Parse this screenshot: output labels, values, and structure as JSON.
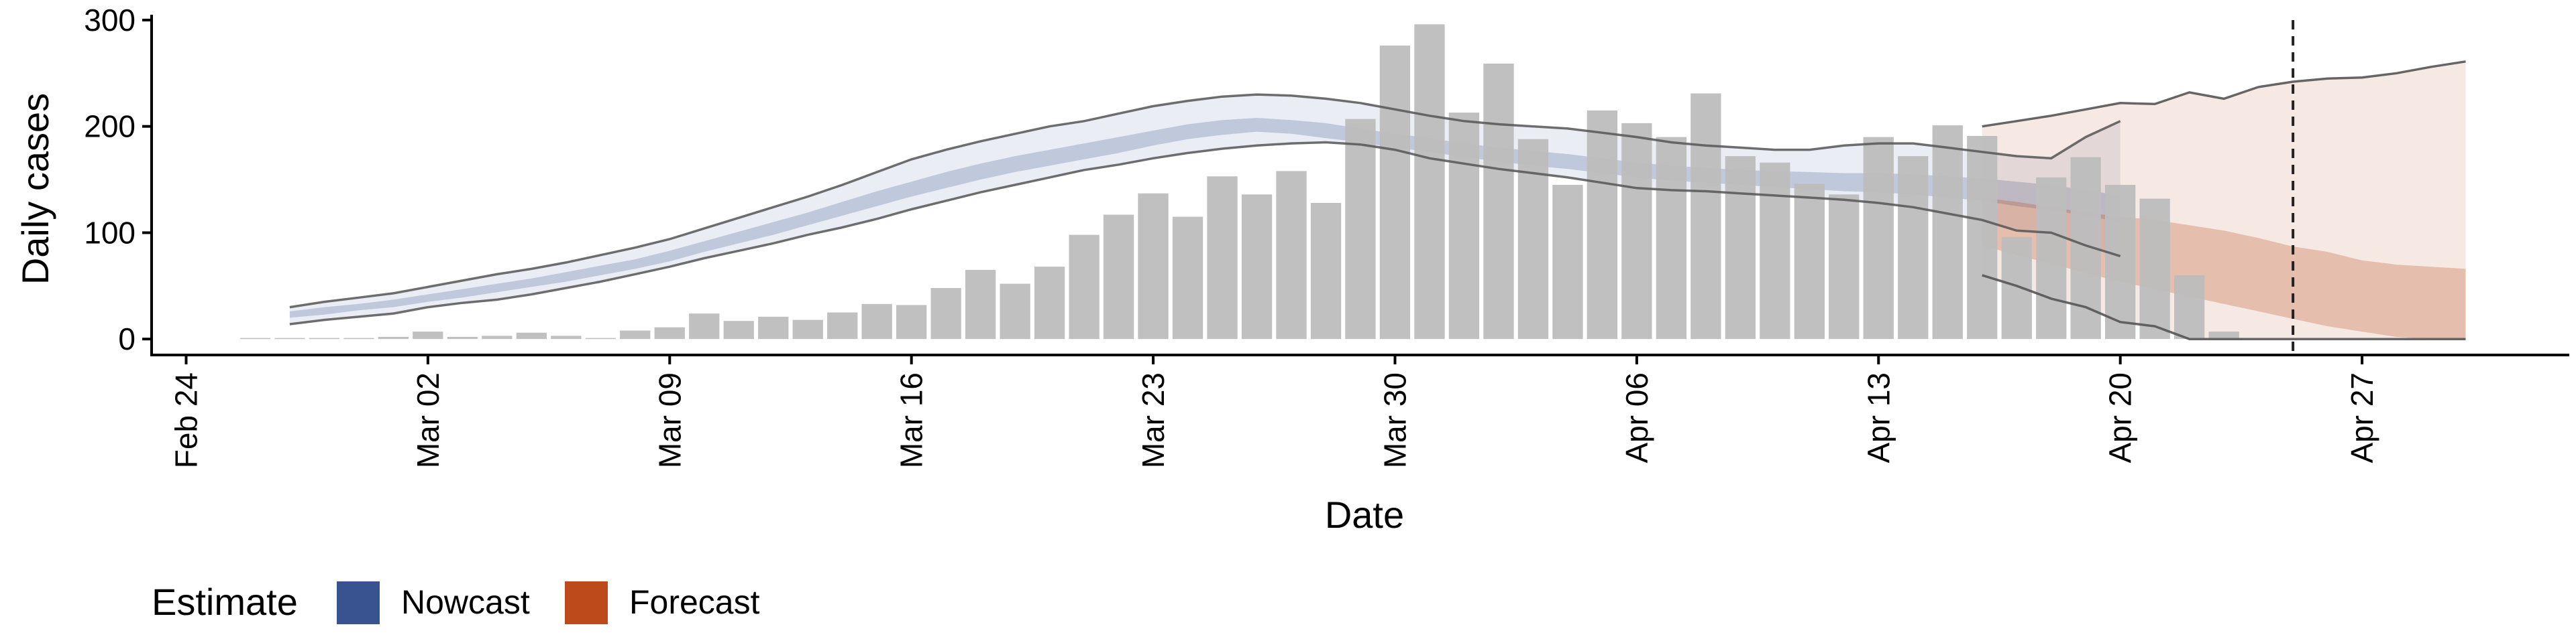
{
  "chart_data": {
    "type": "bar",
    "xlabel": "Date",
    "ylabel": "Daily cases",
    "ylim": [
      -15,
      305
    ],
    "xlim": [
      "2020-02-23",
      "2020-05-03"
    ],
    "y_ticks": [
      0,
      100,
      200,
      300
    ],
    "x_ticks": [
      {
        "date": "2020-02-24",
        "label": "Feb 24"
      },
      {
        "date": "2020-03-02",
        "label": "Mar 02"
      },
      {
        "date": "2020-03-09",
        "label": "Mar 09"
      },
      {
        "date": "2020-03-16",
        "label": "Mar 16"
      },
      {
        "date": "2020-03-23",
        "label": "Mar 23"
      },
      {
        "date": "2020-03-30",
        "label": "Mar 30"
      },
      {
        "date": "2020-04-06",
        "label": "Apr 06"
      },
      {
        "date": "2020-04-13",
        "label": "Apr 13"
      },
      {
        "date": "2020-04-20",
        "label": "Apr 20"
      },
      {
        "date": "2020-04-27",
        "label": "Apr 27"
      }
    ],
    "grid": false,
    "vline_date": "2020-04-25",
    "bar_color": "#bdbdbd",
    "bars": {
      "start_date": "2020-02-26",
      "values": [
        1,
        1,
        1,
        1,
        2,
        7,
        2,
        3,
        6,
        3,
        1,
        8,
        11,
        24,
        17,
        21,
        18,
        25,
        33,
        32,
        48,
        65,
        52,
        68,
        98,
        117,
        137,
        115,
        153,
        136,
        158,
        128,
        207,
        276,
        296,
        213,
        259,
        188,
        145,
        215,
        203,
        190,
        231,
        172,
        166,
        146,
        136,
        190,
        172,
        201,
        191,
        96,
        152,
        171,
        145,
        132,
        60,
        7
      ]
    },
    "nowcast": {
      "color": "#2e4a8a",
      "start_date": "2020-02-27",
      "upper90": [
        30,
        35,
        39,
        43,
        49,
        55,
        61,
        66,
        72,
        79,
        86,
        94,
        104,
        114,
        124,
        134,
        145,
        157,
        169,
        178,
        186,
        193,
        200,
        205,
        212,
        219,
        224,
        228,
        230,
        229,
        226,
        222,
        216,
        210,
        205,
        202,
        200,
        198,
        194,
        190,
        185,
        182,
        180,
        178,
        178,
        182,
        184,
        184,
        180,
        176,
        172,
        170,
        190,
        205
      ],
      "lower90": [
        14,
        18,
        21,
        24,
        30,
        34,
        37,
        42,
        48,
        54,
        61,
        68,
        76,
        83,
        90,
        98,
        105,
        113,
        122,
        130,
        138,
        145,
        152,
        159,
        164,
        170,
        175,
        179,
        182,
        184,
        185,
        183,
        178,
        170,
        165,
        160,
        156,
        152,
        147,
        142,
        140,
        139,
        137,
        135,
        133,
        131,
        128,
        124,
        118,
        112,
        102,
        100,
        88,
        78
      ],
      "upper50": [
        26,
        30,
        33,
        37,
        42,
        47,
        52,
        57,
        63,
        69,
        75,
        83,
        92,
        101,
        110,
        119,
        129,
        139,
        148,
        157,
        165,
        172,
        178,
        184,
        190,
        196,
        202,
        206,
        208,
        206,
        203,
        198,
        193,
        189,
        184,
        180,
        177,
        174,
        170,
        166,
        163,
        161,
        159,
        158,
        157,
        156,
        156,
        155,
        153,
        151,
        148,
        145,
        140,
        135
      ],
      "lower50": [
        20,
        23,
        27,
        30,
        35,
        39,
        44,
        49,
        54,
        60,
        66,
        73,
        82,
        90,
        98,
        107,
        116,
        125,
        134,
        142,
        150,
        157,
        163,
        169,
        175,
        182,
        188,
        192,
        195,
        193,
        189,
        185,
        180,
        176,
        171,
        167,
        163,
        160,
        156,
        152,
        149,
        147,
        145,
        143,
        141,
        139,
        138,
        136,
        133,
        130,
        125,
        121,
        116,
        110
      ]
    },
    "forecast": {
      "color": "#b8400e",
      "start_date": "2020-04-16",
      "upper90": [
        200,
        205,
        210,
        216,
        222,
        221,
        232,
        226,
        237,
        242,
        245,
        246,
        250,
        256,
        261
      ],
      "lower90": [
        60,
        50,
        38,
        30,
        16,
        12,
        0,
        0,
        0,
        0,
        0,
        0,
        0,
        0,
        0
      ],
      "upper50": [
        133,
        129,
        124,
        119,
        115,
        112,
        107,
        102,
        95,
        87,
        82,
        74,
        70,
        68,
        66
      ],
      "lower50": [
        88,
        79,
        71,
        62,
        54,
        47,
        40,
        33,
        26,
        19,
        12,
        7,
        2,
        0,
        0
      ]
    },
    "legend": {
      "title": "Estimate",
      "items": [
        {
          "label": "Nowcast",
          "color": "#2e4a8a"
        },
        {
          "label": "Forecast",
          "color": "#b8400e"
        }
      ],
      "position": "bottom-left"
    }
  }
}
